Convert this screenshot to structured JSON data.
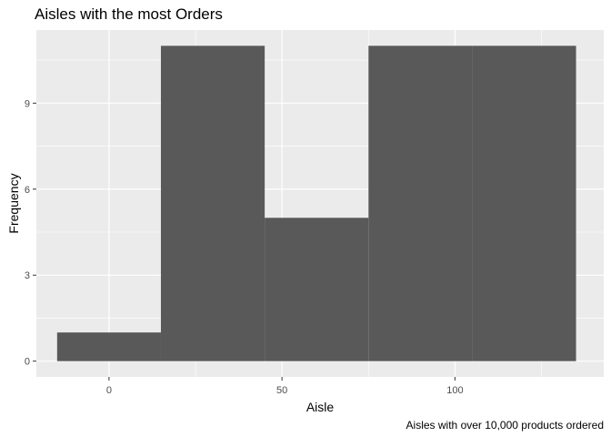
{
  "chart_data": {
    "type": "bar",
    "subtype": "histogram",
    "title": "Aisles with the most Orders",
    "xlabel": "Aisle",
    "ylabel": "Frequency",
    "caption": "Aisles with over 10,000 products ordered",
    "bins": [
      {
        "start": -15,
        "end": 15,
        "count": 1
      },
      {
        "start": 15,
        "end": 45,
        "count": 11
      },
      {
        "start": 45,
        "end": 75,
        "count": 5
      },
      {
        "start": 75,
        "end": 105,
        "count": 11
      },
      {
        "start": 105,
        "end": 135,
        "count": 11
      }
    ],
    "xlim": [
      -21,
      143
    ],
    "ylim": [
      -0.55,
      11.55
    ],
    "x_ticks": [
      0,
      50,
      100
    ],
    "x_minor_ticks": [
      -25,
      25,
      75,
      125
    ],
    "y_ticks": [
      0,
      3,
      6,
      9
    ],
    "y_minor_ticks": [
      1.5,
      4.5,
      7.5,
      10.5
    ],
    "grid": true,
    "legend": "none",
    "colors": {
      "panel": "#ebebeb",
      "grid": "#ffffff",
      "bar": "#595959"
    }
  }
}
